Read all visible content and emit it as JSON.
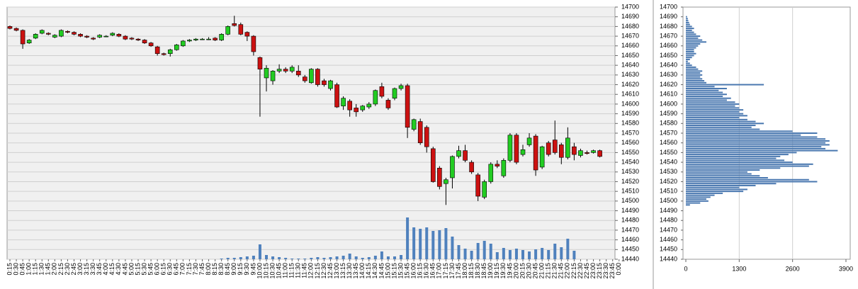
{
  "chart_data": [
    {
      "type": "candlestick",
      "categories": [
        "0:15",
        "0:30",
        "0:45",
        "1:00",
        "1:15",
        "1:30",
        "1:45",
        "2:00",
        "2:15",
        "2:30",
        "2:45",
        "3:00",
        "3:15",
        "3:30",
        "3:45",
        "4:00",
        "4:15",
        "4:30",
        "4:45",
        "5:00",
        "5:15",
        "5:30",
        "5:45",
        "6:00",
        "6:15",
        "6:30",
        "6:45",
        "7:00",
        "7:15",
        "7:30",
        "7:45",
        "8:00",
        "8:15",
        "8:30",
        "8:45",
        "9:00",
        "9:15",
        "9:30",
        "9:45",
        "10:00",
        "10:15",
        "10:30",
        "10:45",
        "11:00",
        "11:15",
        "11:30",
        "11:45",
        "12:00",
        "12:15",
        "12:30",
        "12:45",
        "13:00",
        "13:15",
        "13:30",
        "13:45",
        "14:00",
        "14:15",
        "14:30",
        "14:45",
        "15:00",
        "15:15",
        "15:30",
        "15:45",
        "16:00",
        "16:15",
        "16:30",
        "16:45",
        "17:00",
        "17:15",
        "17:30",
        "17:45",
        "18:00",
        "18:15",
        "18:30",
        "18:45",
        "19:00",
        "19:15",
        "19:30",
        "19:45",
        "20:00",
        "20:15",
        "20:30",
        "20:45",
        "21:00",
        "21:15",
        "21:30",
        "21:45",
        "22:00",
        "22:15",
        "22:30",
        "22:45",
        "23:00",
        "23:15",
        "23:30",
        "23:45",
        "0:00"
      ],
      "open": [
        14680,
        14678,
        14676,
        14663,
        14668,
        14673,
        14673,
        14669,
        14670,
        14675,
        14674,
        14672,
        14670,
        14668,
        14669,
        14670,
        14671,
        14672,
        14670,
        14668,
        14667,
        14666,
        14663,
        14659,
        14652,
        14652,
        14656,
        14660,
        14665,
        14666,
        14667,
        14667,
        14668,
        14666,
        14672,
        14683,
        14682,
        14674,
        14670,
        14648,
        14627,
        14624,
        14634,
        14636,
        14634,
        14634,
        14628,
        14622,
        14636,
        14624,
        14616,
        14620,
        14598,
        14603,
        14596,
        14594,
        14597,
        14600,
        14618,
        14604,
        14606,
        14616,
        14619,
        14574,
        14582,
        14576,
        14554,
        14534,
        14518,
        14524,
        14546,
        14552,
        14540,
        14527,
        14504,
        14520,
        14538,
        14526,
        14542,
        14568,
        14548,
        14558,
        14567,
        14535,
        14560,
        14563,
        14558,
        14545,
        14556,
        14547,
        14550,
        14550,
        14552,
        null,
        null,
        null
      ],
      "high": [
        14681,
        14679,
        14677,
        14667,
        14673,
        14677,
        14674,
        14672,
        14677,
        14676,
        14675,
        14673,
        14671,
        14669,
        14672,
        14671,
        14674,
        14673,
        14671,
        14669,
        14668,
        14667,
        14664,
        14660,
        14653,
        14657,
        14662,
        14666,
        14667,
        14668,
        14668,
        14669,
        14669,
        14673,
        14681,
        14691,
        14684,
        14675,
        14671,
        14649,
        14640,
        14635,
        14641,
        14638,
        14640,
        14640,
        14630,
        14637,
        14637,
        14626,
        14625,
        14622,
        14608,
        14605,
        14600,
        14599,
        14602,
        14615,
        14622,
        14606,
        14617,
        14621,
        14621,
        14585,
        14585,
        14578,
        14556,
        14536,
        14524,
        14547,
        14557,
        14558,
        14542,
        14529,
        14522,
        14540,
        14542,
        14544,
        14570,
        14570,
        14558,
        14570,
        14569,
        14557,
        14562,
        14583,
        14560,
        14576,
        14560,
        14554,
        14552,
        14553,
        14553,
        null,
        null,
        null
      ],
      "low": [
        14677,
        14675,
        14657,
        14662,
        14667,
        14672,
        14671,
        14668,
        14669,
        14673,
        14671,
        14669,
        14668,
        14666,
        14668,
        14669,
        14670,
        14669,
        14666,
        14666,
        14665,
        14662,
        14659,
        14650,
        14650,
        14649,
        14655,
        14659,
        14664,
        14665,
        14666,
        14666,
        14665,
        14665,
        14671,
        14680,
        14671,
        14665,
        14650,
        14587,
        14613,
        14620,
        14632,
        14632,
        14632,
        14628,
        14622,
        14621,
        14618,
        14618,
        14614,
        14596,
        14594,
        14587,
        14587,
        14592,
        14595,
        14598,
        14606,
        14594,
        14604,
        14614,
        14565,
        14572,
        14558,
        14550,
        14519,
        14512,
        14496,
        14513,
        14544,
        14540,
        14528,
        14500,
        14502,
        14518,
        14534,
        14524,
        14540,
        14538,
        14546,
        14556,
        14526,
        14533,
        14546,
        14548,
        14538,
        14543,
        14542,
        14545,
        14548,
        14549,
        14545,
        null,
        null,
        null
      ],
      "close": [
        14678,
        14676,
        14662,
        14666,
        14672,
        14676,
        14672,
        14671,
        14676,
        14674,
        14672,
        14670,
        14669,
        14667,
        14671,
        14670,
        14673,
        14670,
        14667,
        14667,
        14666,
        14663,
        14660,
        14652,
        14651,
        14656,
        14661,
        14665,
        14666,
        14667,
        14667,
        14667,
        14666,
        14672,
        14680,
        14681,
        14672,
        14670,
        14654,
        14636,
        14637,
        14634,
        14636,
        14634,
        14638,
        14630,
        14624,
        14636,
        14620,
        14620,
        14624,
        14597,
        14606,
        14594,
        14592,
        14598,
        14600,
        14614,
        14608,
        14596,
        14616,
        14619,
        14576,
        14584,
        14560,
        14556,
        14520,
        14515,
        14522,
        14546,
        14552,
        14542,
        14530,
        14505,
        14520,
        14538,
        14536,
        14542,
        14568,
        14540,
        14553,
        14565,
        14532,
        14556,
        14548,
        14550,
        14545,
        14565,
        14548,
        14552,
        14549,
        14552,
        14546,
        null,
        null,
        null
      ],
      "volume": [
        0,
        0,
        0,
        0,
        0,
        0,
        0,
        0,
        0,
        0,
        0,
        0,
        0,
        0,
        0,
        0,
        0,
        0,
        0,
        0,
        0,
        0,
        0,
        0,
        0,
        0,
        0,
        0,
        0,
        0,
        0,
        0,
        0,
        1,
        2,
        2,
        3,
        4,
        5,
        21,
        6,
        4,
        3,
        2,
        1,
        1,
        1,
        2,
        3,
        2,
        3,
        4,
        5,
        8,
        4,
        2,
        3,
        5,
        11,
        4,
        4,
        6,
        59,
        45,
        43,
        45,
        40,
        41,
        44,
        32,
        20,
        15,
        12,
        23,
        26,
        22,
        10,
        16,
        13,
        15,
        13,
        11,
        14,
        16,
        13,
        22,
        17,
        29,
        12,
        0,
        0,
        0,
        0,
        0,
        0,
        0
      ],
      "ylim": [
        14440,
        14700
      ],
      "yticks": [
        14440,
        14450,
        14460,
        14470,
        14480,
        14490,
        14500,
        14510,
        14520,
        14530,
        14540,
        14550,
        14560,
        14570,
        14580,
        14590,
        14600,
        14610,
        14620,
        14630,
        14640,
        14650,
        14660,
        14670,
        14680,
        14690,
        14700
      ],
      "grid": true,
      "up_color": "#22cc22",
      "down_color": "#cc1111",
      "volume_color": "#4f81bd"
    },
    {
      "type": "barh",
      "y": [
        14496,
        14498,
        14500,
        14502,
        14504,
        14506,
        14508,
        14510,
        14512,
        14514,
        14516,
        14518,
        14520,
        14522,
        14524,
        14526,
        14528,
        14530,
        14532,
        14534,
        14536,
        14538,
        14540,
        14542,
        14544,
        14546,
        14548,
        14550,
        14552,
        14554,
        14556,
        14558,
        14560,
        14562,
        14564,
        14566,
        14568,
        14570,
        14572,
        14574,
        14576,
        14578,
        14580,
        14582,
        14584,
        14586,
        14588,
        14590,
        14592,
        14594,
        14596,
        14598,
        14600,
        14602,
        14604,
        14606,
        14608,
        14610,
        14612,
        14614,
        14616,
        14618,
        14620,
        14622,
        14624,
        14626,
        14628,
        14630,
        14632,
        14634,
        14636,
        14638,
        14640,
        14642,
        14644,
        14646,
        14648,
        14650,
        14652,
        14654,
        14656,
        14658,
        14660,
        14662,
        14664,
        14666,
        14668,
        14670,
        14672,
        14674,
        14676,
        14678,
        14680,
        14682,
        14684,
        14686,
        14688,
        14690
      ],
      "values": [
        100,
        350,
        550,
        500,
        600,
        700,
        900,
        1400,
        1500,
        1300,
        1700,
        2200,
        3200,
        3000,
        2000,
        1800,
        1600,
        1500,
        1800,
        2300,
        3000,
        3100,
        2600,
        2400,
        2200,
        2300,
        2500,
        2700,
        3700,
        3400,
        3300,
        3500,
        3400,
        3500,
        3400,
        3200,
        2800,
        3200,
        2600,
        1800,
        1600,
        1700,
        1900,
        1700,
        1500,
        1300,
        1500,
        1400,
        1300,
        1400,
        1300,
        1200,
        1300,
        1200,
        1000,
        1100,
        900,
        1000,
        900,
        800,
        1000,
        700,
        1900,
        500,
        450,
        400,
        350,
        400,
        350,
        400,
        300,
        250,
        150,
        100,
        50,
        100,
        150,
        200,
        250,
        200,
        200,
        250,
        300,
        350,
        500,
        400,
        300,
        350,
        250,
        200,
        150,
        200,
        150,
        100,
        80,
        60,
        50,
        30
      ],
      "xlim": [
        0,
        3900
      ],
      "xticks": [
        0,
        1300,
        2600,
        3900
      ],
      "ylim": [
        14440,
        14700
      ],
      "yticks": [
        14440,
        14450,
        14460,
        14470,
        14480,
        14490,
        14500,
        14510,
        14520,
        14530,
        14540,
        14550,
        14560,
        14570,
        14580,
        14590,
        14600,
        14610,
        14620,
        14630,
        14640,
        14650,
        14660,
        14670,
        14680,
        14690,
        14700
      ],
      "grid": true,
      "color": "#4a78b0"
    }
  ]
}
